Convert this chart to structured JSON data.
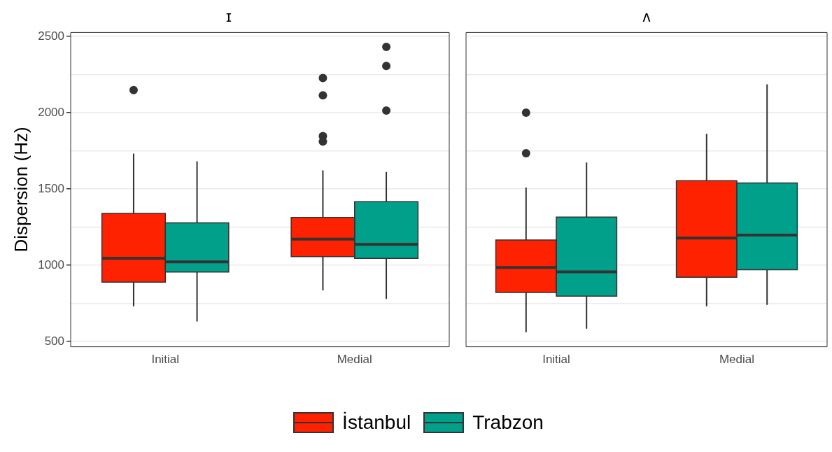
{
  "chart_data": [
    {
      "type": "box",
      "title": "ɪ",
      "ylabel": "Dispersion (Hz)",
      "categories": [
        "Initial",
        "Medial"
      ],
      "ylim": [
        466,
        2526
      ],
      "yticks": [
        500,
        {
          "value": 750,
          "label": null
        },
        1000,
        {
          "value": 1250,
          "label": null
        },
        1500,
        {
          "value": 1750,
          "label": null
        },
        2000,
        {
          "value": 2250,
          "label": null
        },
        2500
      ],
      "grid": "y",
      "legend": "bottom",
      "series": [
        {
          "name": "İstanbul",
          "color": "#ff2200",
          "boxes": [
            {
              "low": 731,
              "q1": 890,
              "median": 1045,
              "q3": 1340,
              "high": 1732,
              "outliers": [
                2148
              ]
            },
            {
              "low": 836,
              "q1": 1057,
              "median": 1171,
              "q3": 1314,
              "high": 1622,
              "outliers": [
                2227,
                2114,
                1847,
                1811
              ]
            }
          ]
        },
        {
          "name": "Trabzon",
          "color": "#00a08a",
          "boxes": [
            {
              "low": 631,
              "q1": 956,
              "median": 1023,
              "q3": 1278,
              "high": 1682
            },
            {
              "low": 779,
              "q1": 1045,
              "median": 1137,
              "q3": 1417,
              "high": 1612,
              "outliers": [
                2432,
                2307,
                2014
              ]
            }
          ]
        }
      ]
    },
    {
      "type": "box",
      "title": "ʌ",
      "categories": [
        "Initial",
        "Medial"
      ],
      "ylim": [
        466,
        2526
      ],
      "yticks": [
        500,
        {
          "value": 750,
          "label": null
        },
        1000,
        {
          "value": 1250,
          "label": null
        },
        1500,
        {
          "value": 1750,
          "label": null
        },
        2000,
        {
          "value": 2250,
          "label": null
        },
        2500
      ],
      "grid": "y",
      "tick_labels": "x",
      "series": [
        {
          "color": "#ff2200",
          "boxes": [
            {
              "low": 560,
              "q1": 822,
              "median": 986,
              "q3": 1166,
              "high": 1510,
              "outliers": [
                2000,
                1734
              ]
            },
            {
              "low": 731,
              "q1": 922,
              "median": 1178,
              "q3": 1555,
              "high": 1862
            }
          ]
        },
        {
          "color": "#00a08a",
          "boxes": [
            {
              "low": 584,
              "q1": 798,
              "median": 957,
              "q3": 1316,
              "high": 1674
            },
            {
              "low": 740,
              "q1": 971,
              "median": 1198,
              "q3": 1540,
              "high": 2186
            }
          ]
        }
      ]
    }
  ]
}
